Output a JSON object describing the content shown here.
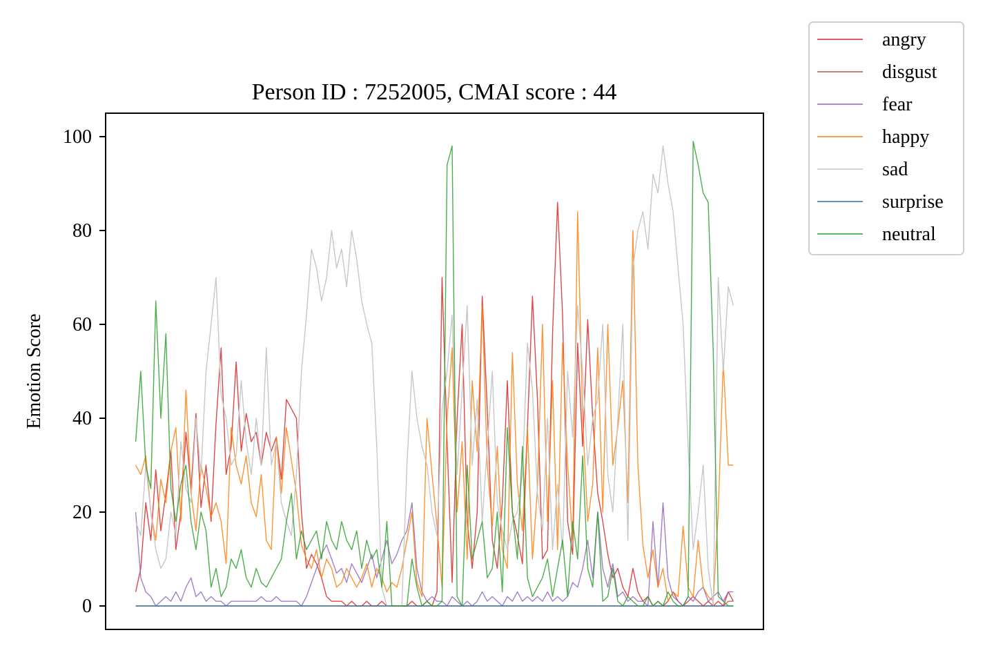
{
  "chart_data": {
    "type": "line",
    "title": "Person ID : 7252005, CMAI score : 44",
    "xlabel": "",
    "ylabel": "Emotion Score",
    "x": [
      0,
      1,
      2,
      3,
      4,
      5,
      6,
      7,
      8,
      9,
      10,
      11,
      12,
      13,
      14,
      15,
      16,
      17,
      18,
      19,
      20,
      21,
      22,
      23,
      24,
      25,
      26,
      27,
      28,
      29,
      30,
      31,
      32,
      33,
      34,
      35,
      36,
      37,
      38,
      39,
      40,
      41,
      42,
      43,
      44,
      45,
      46,
      47,
      48,
      49,
      50,
      51,
      52,
      53,
      54,
      55,
      56,
      57,
      58,
      59,
      60,
      61,
      62,
      63,
      64,
      65,
      66,
      67,
      68,
      69,
      70,
      71,
      72,
      73,
      74,
      75,
      76,
      77,
      78,
      79,
      80,
      81,
      82,
      83,
      84,
      85,
      86,
      87,
      88,
      89,
      90,
      91,
      92,
      93,
      94,
      95,
      96,
      97,
      98,
      99,
      100,
      101,
      102,
      103,
      104,
      105,
      106,
      107,
      108,
      109,
      110,
      111,
      112,
      113,
      114,
      115,
      116,
      117,
      118,
      119
    ],
    "xlim": [
      -6,
      125
    ],
    "ylim": [
      -5,
      105
    ],
    "yticks": [
      0,
      20,
      40,
      60,
      80,
      100
    ],
    "show_xticks": false,
    "grid": false,
    "legend": {
      "placement": "outside-top-right"
    },
    "series": [
      {
        "name": "angry",
        "color": "#d62728",
        "values": [
          3,
          8,
          22,
          14,
          29,
          16,
          24,
          33,
          12,
          20,
          37,
          25,
          41,
          21,
          30,
          18,
          39,
          55,
          28,
          34,
          52,
          33,
          41,
          35,
          37,
          30,
          37,
          33,
          36,
          27,
          44,
          42,
          40,
          20,
          8,
          11,
          9,
          6,
          2,
          1,
          1,
          1,
          0,
          1,
          0,
          0,
          1,
          0,
          0,
          1,
          0,
          0,
          0,
          0,
          0,
          1,
          0,
          0,
          1,
          0,
          3,
          70,
          35,
          5,
          40,
          60,
          18,
          8,
          20,
          66,
          42,
          14,
          8,
          22,
          48,
          20,
          15,
          9,
          38,
          66,
          44,
          10,
          12,
          58,
          86,
          62,
          18,
          11,
          56,
          34,
          61,
          40,
          24,
          18,
          11,
          6,
          8,
          4,
          2,
          8,
          3,
          1,
          2,
          0,
          1,
          0,
          1,
          3,
          1,
          0,
          1,
          2,
          1,
          0,
          1,
          0,
          1,
          0,
          3,
          1
        ]
      },
      {
        "name": "disgust",
        "color": "#b55a3c",
        "values": [
          0,
          0,
          0,
          0,
          0,
          0,
          0,
          0,
          0,
          0,
          0,
          0,
          0,
          0,
          0,
          0,
          0,
          0,
          0,
          0,
          0,
          0,
          0,
          0,
          0,
          0,
          0,
          0,
          0,
          0,
          0,
          0,
          0,
          0,
          0,
          0,
          0,
          0,
          0,
          0,
          0,
          0,
          0,
          0,
          0,
          0,
          0,
          0,
          0,
          0,
          0,
          0,
          0,
          0,
          0,
          0,
          0,
          0,
          0,
          0,
          0,
          0,
          0,
          0,
          0,
          0,
          0,
          0,
          0,
          0,
          0,
          0,
          0,
          0,
          0,
          0,
          0,
          0,
          0,
          0,
          0,
          0,
          0,
          0,
          0,
          0,
          0,
          0,
          0,
          0,
          0,
          0,
          0,
          0,
          0,
          0,
          0,
          0,
          0,
          0,
          0,
          0,
          0,
          0,
          0,
          0,
          0,
          0,
          0,
          0,
          0,
          0,
          0,
          0,
          0,
          0,
          0,
          0,
          1,
          1
        ]
      },
      {
        "name": "fear",
        "color": "#9467bd",
        "values": [
          20,
          6,
          3,
          2,
          0,
          1,
          2,
          1,
          3,
          1,
          4,
          6,
          2,
          3,
          1,
          2,
          1,
          1,
          0,
          1,
          1,
          1,
          1,
          1,
          1,
          2,
          1,
          1,
          2,
          1,
          1,
          1,
          1,
          0,
          2,
          5,
          8,
          11,
          13,
          10,
          7,
          8,
          5,
          9,
          7,
          5,
          8,
          11,
          6,
          10,
          14,
          9,
          11,
          14,
          16,
          22,
          8,
          3,
          1,
          2,
          1,
          1,
          0,
          2,
          1,
          0,
          1,
          0,
          1,
          3,
          1,
          2,
          1,
          0,
          2,
          1,
          3,
          1,
          2,
          1,
          2,
          1,
          3,
          1,
          2,
          1,
          2,
          5,
          4,
          8,
          14,
          6,
          20,
          8,
          4,
          9,
          2,
          3,
          1,
          2,
          1,
          1,
          0,
          18,
          4,
          22,
          6,
          2,
          1,
          0,
          2,
          1,
          3,
          4,
          1,
          2,
          3,
          1,
          3,
          3
        ]
      },
      {
        "name": "happy",
        "color": "#ff7f0e",
        "values": [
          30,
          28,
          32,
          20,
          14,
          27,
          22,
          33,
          38,
          18,
          46,
          24,
          16,
          30,
          25,
          19,
          22,
          18,
          9,
          38,
          30,
          26,
          32,
          22,
          19,
          28,
          14,
          12,
          36,
          24,
          38,
          31,
          24,
          13,
          10,
          8,
          12,
          6,
          10,
          8,
          4,
          5,
          8,
          6,
          4,
          6,
          9,
          4,
          8,
          6,
          3,
          5,
          4,
          8,
          14,
          20,
          5,
          2,
          40,
          28,
          17,
          4,
          40,
          55,
          20,
          35,
          10,
          48,
          33,
          64,
          30,
          17,
          34,
          12,
          8,
          54,
          26,
          16,
          38,
          10,
          25,
          60,
          18,
          48,
          12,
          56,
          30,
          14,
          84,
          40,
          18,
          26,
          55,
          20,
          60,
          30,
          38,
          48,
          22,
          80,
          30,
          13,
          6,
          12,
          4,
          8,
          1,
          3,
          2,
          17,
          4,
          2,
          14,
          4,
          2,
          1,
          20,
          52,
          30,
          30
        ]
      },
      {
        "name": "sad",
        "color": "#c7c7c7",
        "values": [
          18,
          15,
          30,
          20,
          12,
          8,
          10,
          20,
          15,
          35,
          25,
          22,
          40,
          28,
          50,
          60,
          70,
          45,
          40,
          30,
          32,
          48,
          35,
          28,
          40,
          30,
          55,
          30,
          35,
          22,
          18,
          15,
          28,
          50,
          62,
          76,
          72,
          65,
          70,
          80,
          72,
          76,
          68,
          80,
          74,
          65,
          60,
          56,
          34,
          4,
          0,
          0,
          0,
          0,
          30,
          50,
          40,
          34,
          30,
          20,
          15,
          42,
          50,
          62,
          28,
          46,
          64,
          30,
          44,
          18,
          34,
          50,
          22,
          16,
          12,
          18,
          20,
          28,
          56,
          46,
          24,
          16,
          40,
          12,
          26,
          12,
          50,
          36,
          64,
          50,
          30,
          40,
          44,
          60,
          28,
          20,
          40,
          60,
          14,
          72,
          80,
          84,
          76,
          92,
          88,
          98,
          90,
          84,
          72,
          60,
          34,
          12,
          20,
          30,
          8,
          0,
          70,
          50,
          68,
          64
        ]
      },
      {
        "name": "surprise",
        "color": "#1f77b4",
        "values": [
          0,
          0,
          0,
          0,
          0,
          0,
          0,
          0,
          0,
          0,
          0,
          0,
          0,
          0,
          0,
          0,
          0,
          0,
          0,
          0,
          0,
          0,
          0,
          0,
          0,
          0,
          0,
          0,
          0,
          0,
          0,
          0,
          0,
          0,
          0,
          0,
          0,
          0,
          0,
          0,
          0,
          0,
          0,
          0,
          0,
          0,
          0,
          0,
          0,
          0,
          0,
          0,
          0,
          0,
          0,
          0,
          0,
          0,
          0,
          0,
          0,
          0,
          0,
          0,
          0,
          0,
          0,
          0,
          0,
          0,
          0,
          0,
          0,
          0,
          0,
          0,
          0,
          0,
          0,
          0,
          0,
          0,
          0,
          0,
          0,
          0,
          0,
          0,
          0,
          0,
          0,
          0,
          0,
          0,
          0,
          0,
          0,
          0,
          0,
          0,
          0,
          0,
          0,
          0,
          0,
          0,
          0,
          0,
          0,
          0,
          0,
          0,
          0,
          0,
          0,
          0,
          0,
          0,
          0,
          0
        ]
      },
      {
        "name": "neutral",
        "color": "#2ca02c",
        "values": [
          35,
          50,
          30,
          25,
          65,
          40,
          58,
          25,
          18,
          26,
          30,
          18,
          12,
          20,
          16,
          4,
          8,
          2,
          4,
          10,
          8,
          12,
          6,
          4,
          8,
          5,
          4,
          6,
          8,
          10,
          18,
          24,
          10,
          16,
          12,
          14,
          16,
          10,
          18,
          14,
          12,
          18,
          14,
          12,
          16,
          8,
          14,
          10,
          12,
          4,
          18,
          0,
          0,
          0,
          0,
          10,
          4,
          0,
          1,
          0,
          0,
          1,
          94,
          98,
          2,
          0,
          30,
          10,
          14,
          18,
          6,
          8,
          20,
          3,
          38,
          20,
          10,
          34,
          6,
          2,
          4,
          6,
          10,
          2,
          8,
          14,
          2,
          18,
          10,
          32,
          8,
          4,
          20,
          1,
          2,
          8,
          1,
          0,
          2,
          1,
          0,
          0,
          2,
          0,
          1,
          0,
          3,
          1,
          0,
          0,
          2,
          99,
          94,
          88,
          86,
          54,
          2,
          1,
          0,
          0
        ]
      }
    ]
  }
}
